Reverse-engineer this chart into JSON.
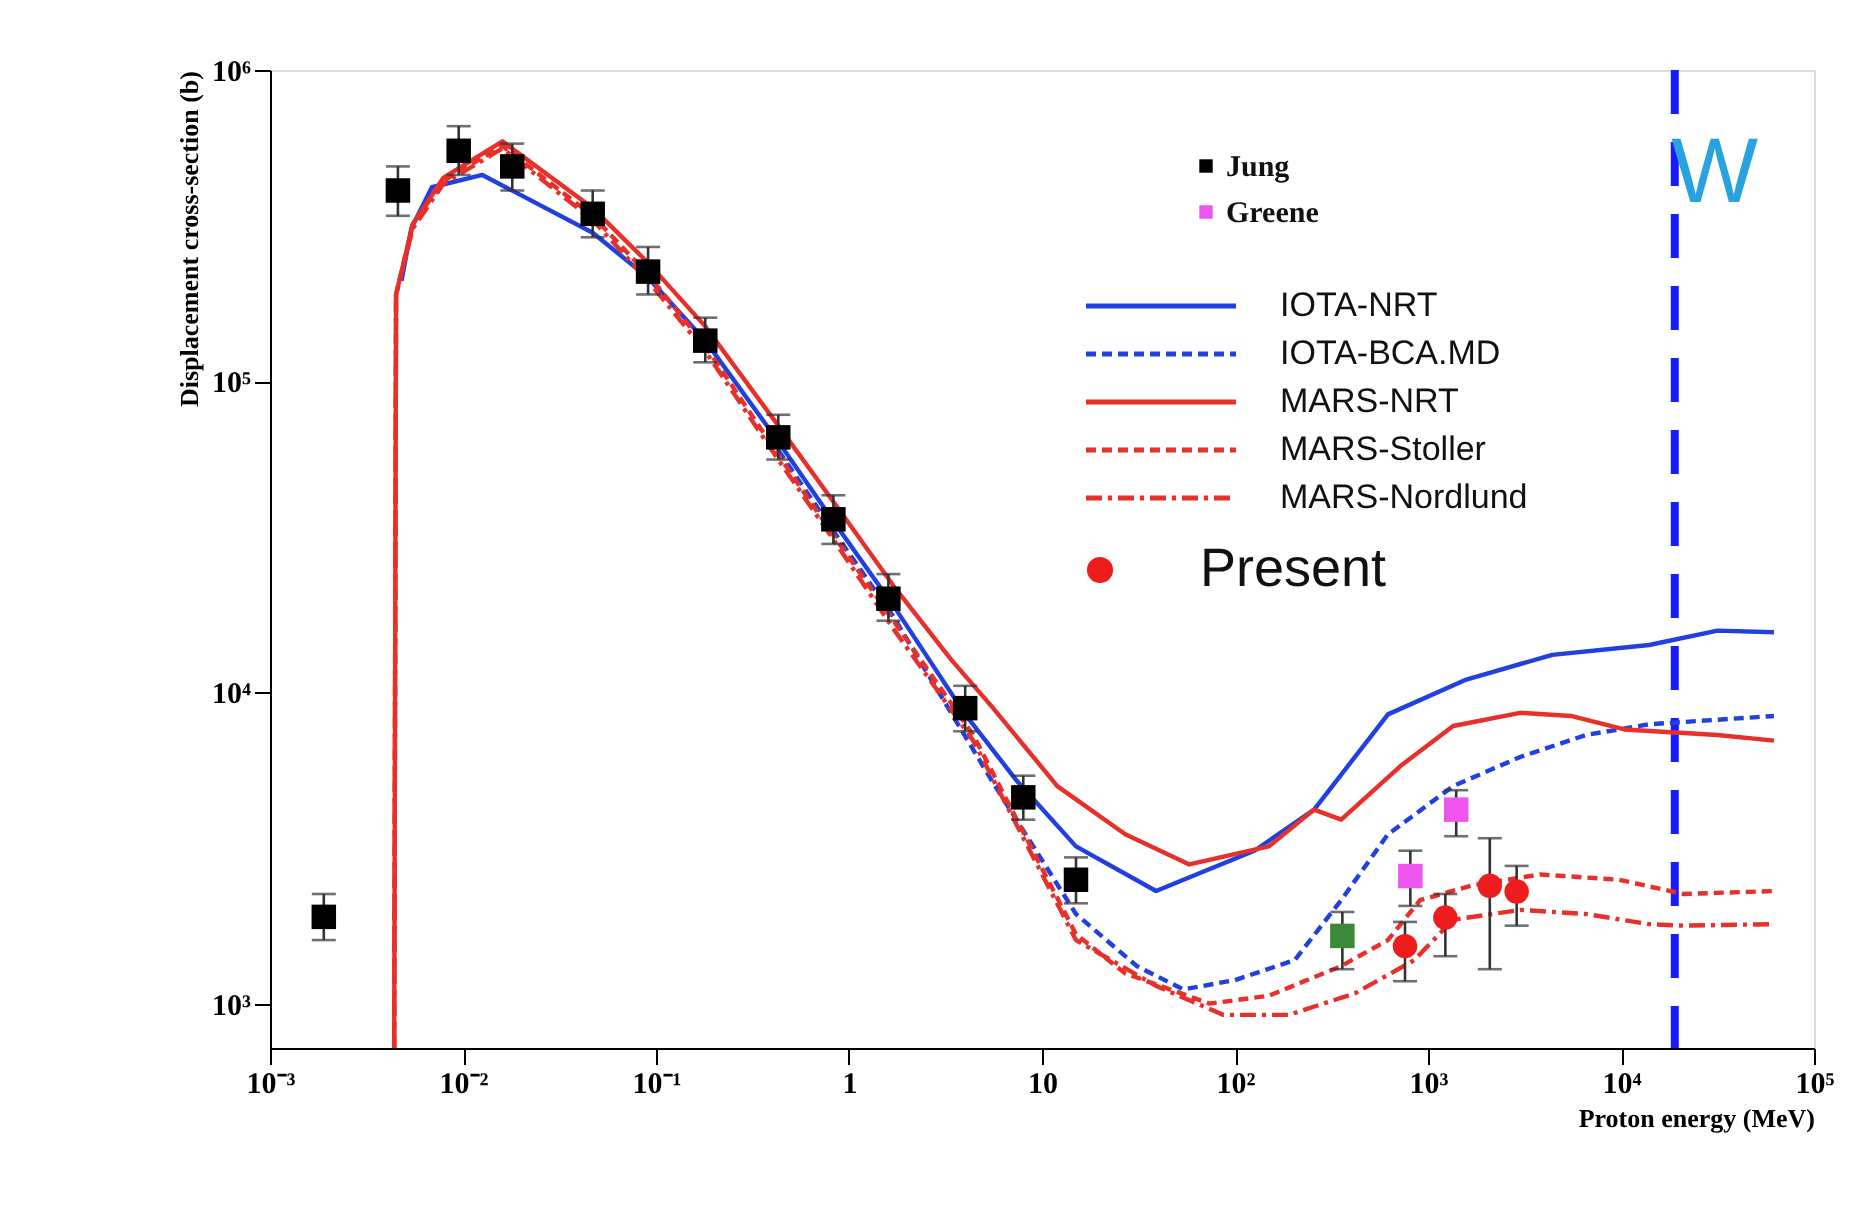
{
  "chart_data": {
    "type": "line",
    "xlabel": "Proton energy (MeV)",
    "ylabel": "Displacement cross-section (b)",
    "log": "xy",
    "grid": false,
    "legend": "top right",
    "xlim": [
      0.001,
      100000
    ],
    "ylim": [
      720,
      1000000
    ],
    "xticks": [
      {
        "value": 0.001,
        "label": "10⁻³"
      },
      {
        "value": 0.01,
        "label": "10⁻²"
      },
      {
        "value": 0.1,
        "label": "10⁻¹"
      },
      1,
      10,
      {
        "value": 100,
        "label": "10²"
      },
      {
        "value": 1000,
        "label": "10³"
      },
      {
        "value": 10000,
        "label": "10⁴"
      },
      {
        "value": 100000,
        "label": "10⁵"
      }
    ],
    "yticks": [
      {
        "value": 1000,
        "label": "10³"
      },
      {
        "value": 10000,
        "label": "10⁴"
      },
      {
        "value": 100000,
        "label": "10⁵"
      },
      {
        "value": 1000000,
        "label": "10⁶"
      }
    ],
    "annotations": [
      "W"
    ],
    "ref_lines": [
      {
        "axis": "x",
        "value": 19000,
        "color": "#1a1aff",
        "line_style": "dashed"
      }
    ],
    "series": [
      {
        "name": "Jung",
        "type": "scatter",
        "marker": "square",
        "color": "#000000",
        "x": [
          0.0019,
          0.0046,
          0.0095,
          0.018,
          0.047,
          0.091,
          0.18,
          0.43,
          0.83,
          1.6,
          4.0,
          8,
          15
        ],
        "values": [
          1900,
          410000,
          550000,
          490000,
          345000,
          225000,
          135000,
          66000,
          36000,
          20000,
          8900,
          4600,
          2500
        ],
        "errors": [
          [
            1600,
            2250
          ],
          [
            340000,
            490000
          ],
          [
            460000,
            660000
          ],
          [
            410000,
            580000
          ],
          [
            290000,
            410000
          ],
          [
            190000,
            270000
          ],
          [
            115000,
            160000
          ],
          [
            56000,
            78000
          ],
          [
            30000,
            43000
          ],
          [
            17000,
            24000
          ],
          [
            7500,
            10500
          ],
          [
            3900,
            5400
          ],
          [
            2100,
            2950
          ]
        ]
      },
      {
        "name": "Greene",
        "type": "scatter",
        "marker": "square",
        "color": "#ee55ee",
        "x": [
          810,
          1400
        ],
        "values": [
          2570,
          4200
        ],
        "errors": [
          [
            2060,
            3100
          ],
          [
            3450,
            4850
          ]
        ]
      },
      {
        "name": "IOTA-NRT",
        "line_style": "solid",
        "color": "#2040e0",
        "x": [
          0.0048,
          0.0054,
          0.0069,
          0.0126,
          0.047,
          0.091,
          0.18,
          0.43,
          0.83,
          1.7,
          4.0,
          7.4,
          15,
          39,
          126,
          257,
          620,
          1580,
          4400,
          14000,
          31600,
          62000
        ],
        "values": [
          210000,
          310000,
          420000,
          460000,
          300000,
          215000,
          135000,
          64000,
          35500,
          19000,
          8500,
          5200,
          3200,
          2300,
          3100,
          4200,
          8500,
          11000,
          13200,
          14200,
          15800,
          15600
        ]
      },
      {
        "name": "IOTA-BCA.MD",
        "line_style": "dashed",
        "color": "#2040e0",
        "x": [
          0.43,
          0.83,
          1.7,
          5.5,
          15,
          31,
          54,
          100,
          204,
          355,
          620,
          1350,
          3000,
          6600,
          14000,
          62000
        ],
        "values": [
          60000,
          33000,
          17500,
          5200,
          1940,
          1320,
          1110,
          1190,
          1380,
          2150,
          3500,
          5000,
          6200,
          7300,
          7900,
          8400
        ]
      },
      {
        "name": "MARS-NRT",
        "line_style": "solid",
        "color": "#e8302a",
        "x": [
          0.0044,
          0.0045,
          0.0055,
          0.0079,
          0.016,
          0.047,
          0.091,
          0.18,
          0.43,
          0.83,
          1.7,
          3.4,
          5.5,
          12,
          27,
          58,
          150,
          257,
          355,
          720,
          1350,
          3000,
          5500,
          10400,
          31600,
          62000
        ],
        "values": [
          720,
          190000,
          320000,
          450000,
          590000,
          360000,
          240000,
          150000,
          72000,
          41000,
          22000,
          12700,
          9000,
          5000,
          3500,
          2800,
          3200,
          4200,
          3900,
          5800,
          7800,
          8600,
          8400,
          7600,
          7300,
          7000
        ]
      },
      {
        "name": "MARS-Stoller",
        "line_style": "dashed",
        "color": "#e8302a",
        "x": [
          0.0044,
          0.0045,
          0.0055,
          0.0079,
          0.016,
          0.047,
          0.091,
          0.18,
          0.43,
          0.83,
          1.7,
          4.4,
          15,
          27,
          74,
          150,
          355,
          620,
          910,
          1700,
          3800,
          9800,
          21000,
          62000
        ],
        "values": [
          720,
          190000,
          320000,
          440000,
          570000,
          340000,
          220000,
          130000,
          58000,
          32000,
          17000,
          7300,
          1670,
          1250,
          1000,
          1060,
          1320,
          1600,
          2150,
          2400,
          2600,
          2500,
          2250,
          2300
        ]
      },
      {
        "name": "MARS-Nordlund",
        "line_style": "dashdot",
        "color": "#e8302a",
        "x": [
          0.0044,
          0.0045,
          0.0055,
          0.0079,
          0.016,
          0.047,
          0.091,
          0.18,
          0.43,
          0.83,
          1.7,
          4.4,
          15,
          39,
          87,
          190,
          420,
          850,
          1350,
          3000,
          6600,
          14000,
          21000,
          62000
        ],
        "values": [
          720,
          190000,
          310000,
          430000,
          560000,
          330000,
          210000,
          125000,
          56000,
          31000,
          16000,
          7000,
          1600,
          1140,
          920,
          920,
          1080,
          1380,
          1860,
          2000,
          1940,
          1800,
          1780,
          1800
        ]
      },
      {
        "name": "Present",
        "type": "scatter",
        "marker": "circle",
        "color": "#ee1c1c",
        "x": [
          760,
          1230,
          2090,
          2880
        ],
        "values": [
          1530,
          1890,
          2390,
          2290
        ],
        "errors": [
          [
            1180,
            1830
          ],
          [
            1420,
            2250
          ],
          [
            1290,
            3400
          ],
          [
            1780,
            2770
          ]
        ]
      },
      {
        "type": "scatter",
        "marker": "square",
        "color": "#3a8a3a",
        "x": [
          360
        ],
        "values": [
          1650
        ],
        "errors": [
          [
            1290,
            1970
          ]
        ]
      }
    ]
  }
}
